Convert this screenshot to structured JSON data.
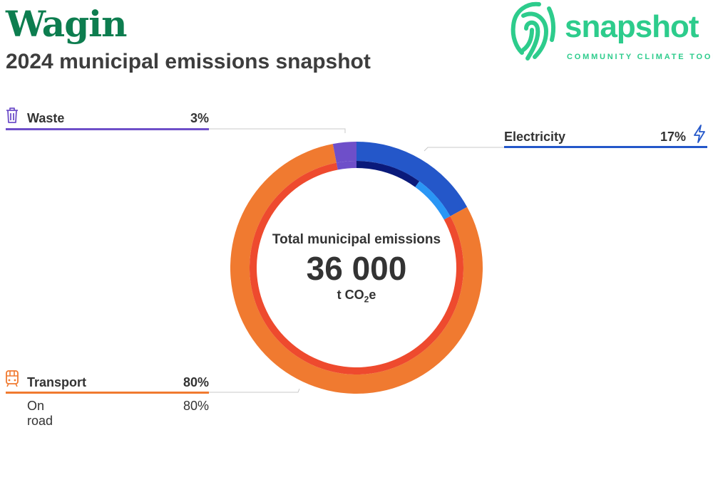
{
  "header": {
    "title": "Wagin",
    "subtitle": "2024 municipal emissions snapshot"
  },
  "logo": {
    "name": "snapshot",
    "tagline": "COMMUNITY CLIMATE TOOL",
    "color": "#2dcc8c",
    "icon": "fingerprint-icon"
  },
  "center": {
    "label": "Total municipal emissions",
    "value": "36 000",
    "unit_prefix": "t CO",
    "unit_sub": "2",
    "unit_suffix": "e"
  },
  "legend": {
    "waste": {
      "label": "Waste",
      "pct": "3%",
      "color": "#6e4fc9",
      "icon": "trash-icon"
    },
    "electricity": {
      "label": "Electricity",
      "pct": "17%",
      "color": "#2457c9",
      "icon": "lightning-icon"
    },
    "transport": {
      "label": "Transport",
      "pct": "80%",
      "color": "#f07a30",
      "icon": "train-icon",
      "sub": {
        "label": "On road",
        "pct": "80%"
      }
    }
  },
  "chart_data": {
    "type": "pie",
    "categories": [
      "Electricity",
      "Transport",
      "Waste"
    ],
    "values": [
      17,
      80,
      3
    ],
    "colors": [
      "#2457c9",
      "#f07a30",
      "#6e4fc9"
    ],
    "title": "Total municipal emissions",
    "total": 36000,
    "unit": "t CO2e",
    "subcategories": [
      {
        "parent": "Electricity",
        "values": [
          10,
          7
        ],
        "colors": [
          "#0a1a7a",
          "#2a96f5"
        ]
      },
      {
        "parent": "Transport",
        "label": "On road",
        "values": [
          80
        ],
        "colors": [
          "#ee4a2e"
        ]
      },
      {
        "parent": "Waste",
        "values": [
          3
        ],
        "colors": [
          "#6e4fc9"
        ]
      }
    ]
  }
}
